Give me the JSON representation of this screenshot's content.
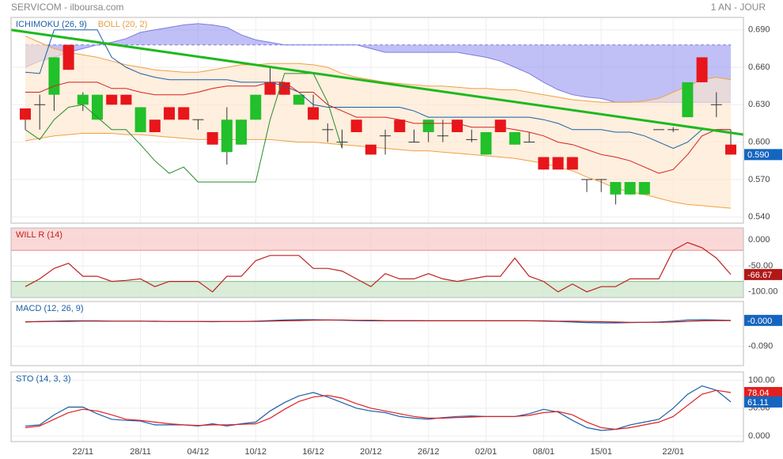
{
  "header": {
    "title": "SERVICOM - ilboursa.com",
    "period": "1 AN - JOUR"
  },
  "chart_data": [
    {
      "type": "candlestick",
      "indicators": [
        {
          "name": "ICHIMOKU (26, 9)",
          "color": "#1a5fa8"
        },
        {
          "name": "BOLL (20, 2)",
          "color": "#e8a040"
        }
      ],
      "categories": [
        null,
        null,
        null,
        null,
        "22/11",
        null,
        null,
        null,
        "28/11",
        null,
        null,
        null,
        "04/12",
        null,
        null,
        null,
        "10/12",
        null,
        null,
        null,
        "16/12",
        null,
        null,
        null,
        "20/12",
        null,
        null,
        null,
        "26/12",
        null,
        null,
        null,
        "02/01",
        null,
        null,
        null,
        "08/01",
        null,
        null,
        null,
        "15/01",
        null,
        null,
        null,
        null,
        "22/01",
        null,
        null,
        null,
        null
      ],
      "open": [
        0.627,
        0.63,
        0.638,
        0.678,
        0.63,
        0.618,
        0.638,
        0.638,
        0.608,
        0.618,
        0.628,
        0.628,
        0.618,
        0.608,
        0.592,
        0.598,
        0.618,
        0.648,
        0.648,
        0.63,
        0.628,
        0.61,
        0.6,
        0.618,
        0.598,
        0.605,
        0.618,
        0.6,
        0.608,
        0.605,
        0.618,
        0.602,
        0.59,
        0.618,
        0.598,
        0.6,
        0.588,
        0.588,
        0.588,
        0.57,
        0.57,
        0.558,
        0.558,
        0.558,
        0.61,
        0.61,
        0.62,
        0.668,
        0.63,
        0.598
      ],
      "high": [
        0.627,
        0.638,
        0.668,
        0.678,
        0.64,
        0.638,
        0.638,
        0.638,
        0.628,
        0.618,
        0.628,
        0.628,
        0.618,
        0.608,
        0.628,
        0.618,
        0.638,
        0.66,
        0.648,
        0.638,
        0.638,
        0.615,
        0.61,
        0.618,
        0.598,
        0.61,
        0.618,
        0.61,
        0.618,
        0.618,
        0.618,
        0.61,
        0.608,
        0.618,
        0.608,
        0.608,
        0.588,
        0.588,
        0.588,
        0.57,
        0.57,
        0.568,
        0.568,
        0.568,
        0.61,
        0.612,
        0.648,
        0.668,
        0.64,
        0.61
      ],
      "low": [
        0.61,
        0.61,
        0.625,
        0.658,
        0.625,
        0.618,
        0.63,
        0.63,
        0.608,
        0.608,
        0.618,
        0.618,
        0.61,
        0.598,
        0.582,
        0.598,
        0.618,
        0.638,
        0.638,
        0.63,
        0.618,
        0.6,
        0.595,
        0.608,
        0.59,
        0.59,
        0.608,
        0.6,
        0.6,
        0.6,
        0.608,
        0.6,
        0.59,
        0.608,
        0.598,
        0.6,
        0.578,
        0.578,
        0.578,
        0.56,
        0.56,
        0.55,
        0.558,
        0.558,
        0.61,
        0.608,
        0.62,
        0.648,
        0.62,
        0.59
      ],
      "close": [
        0.618,
        0.63,
        0.668,
        0.658,
        0.638,
        0.638,
        0.63,
        0.63,
        0.628,
        0.608,
        0.618,
        0.618,
        0.618,
        0.598,
        0.618,
        0.618,
        0.638,
        0.638,
        0.638,
        0.638,
        0.618,
        0.61,
        0.6,
        0.608,
        0.59,
        0.605,
        0.608,
        0.6,
        0.618,
        0.605,
        0.608,
        0.602,
        0.608,
        0.608,
        0.608,
        0.6,
        0.578,
        0.578,
        0.578,
        0.57,
        0.57,
        0.568,
        0.568,
        0.568,
        0.61,
        0.61,
        0.648,
        0.648,
        0.63,
        0.59
      ],
      "up_color": "#22c02a",
      "down_color": "#e8151b",
      "bands": [
        {
          "name": "cloud",
          "upper": "span_b",
          "lower": "span_a",
          "fill": "#8c8cf0",
          "line": "#7b7be0"
        },
        {
          "name": "boll",
          "upper": "boll_upper",
          "lower": "boll_lower",
          "fill": "#fde6cc",
          "line": "#f0a040"
        }
      ],
      "lines": {
        "span_a": [
          0.678,
          0.678,
          0.678,
          0.678,
          0.678,
          0.678,
          0.678,
          0.678,
          0.678,
          0.678,
          0.678,
          0.678,
          0.678,
          0.678,
          0.678,
          0.678,
          0.678,
          0.678,
          0.678,
          0.678,
          0.678,
          0.678,
          0.678,
          0.678,
          0.678,
          0.678,
          0.678,
          0.678,
          0.678,
          0.678,
          0.678,
          0.678,
          0.678,
          0.678,
          0.678,
          0.678,
          0.678,
          0.678,
          0.678,
          0.678,
          0.678,
          0.678,
          0.678,
          0.678,
          0.678,
          0.678,
          0.678,
          0.678,
          0.678,
          0.678
        ],
        "span_b": [
          0.66,
          0.665,
          0.668,
          0.672,
          0.675,
          0.678,
          0.68,
          0.683,
          0.688,
          0.69,
          0.692,
          0.694,
          0.695,
          0.694,
          0.692,
          0.686,
          0.682,
          0.68,
          0.678,
          0.678,
          0.678,
          0.678,
          0.678,
          0.678,
          0.675,
          0.672,
          0.672,
          0.672,
          0.672,
          0.672,
          0.672,
          0.67,
          0.668,
          0.665,
          0.66,
          0.655,
          0.648,
          0.642,
          0.638,
          0.636,
          0.635,
          0.632,
          0.632,
          0.632,
          0.632,
          0.632,
          0.632,
          0.632,
          0.632,
          0.632
        ],
        "boll_upper": [
          0.685,
          0.68,
          0.675,
          0.672,
          0.67,
          0.668,
          0.665,
          0.662,
          0.66,
          0.658,
          0.657,
          0.656,
          0.656,
          0.658,
          0.66,
          0.662,
          0.662,
          0.663,
          0.663,
          0.663,
          0.662,
          0.66,
          0.655,
          0.652,
          0.65,
          0.648,
          0.647,
          0.646,
          0.645,
          0.645,
          0.644,
          0.643,
          0.643,
          0.642,
          0.642,
          0.64,
          0.638,
          0.636,
          0.634,
          0.633,
          0.632,
          0.632,
          0.632,
          0.633,
          0.635,
          0.64,
          0.645,
          0.65,
          0.652,
          0.65
        ],
        "boll_lower": [
          0.601,
          0.603,
          0.605,
          0.606,
          0.607,
          0.607,
          0.607,
          0.606,
          0.606,
          0.605,
          0.604,
          0.603,
          0.602,
          0.602,
          0.602,
          0.602,
          0.602,
          0.602,
          0.601,
          0.6,
          0.6,
          0.599,
          0.598,
          0.597,
          0.596,
          0.595,
          0.594,
          0.593,
          0.593,
          0.592,
          0.591,
          0.59,
          0.589,
          0.588,
          0.587,
          0.585,
          0.583,
          0.58,
          0.577,
          0.572,
          0.568,
          0.563,
          0.56,
          0.558,
          0.555,
          0.552,
          0.55,
          0.549,
          0.548,
          0.547
        ]
      },
      "series": [
        {
          "color": "#1a5fa8",
          "values": [
            0.656,
            0.655,
            0.69,
            0.69,
            0.69,
            0.69,
            0.668,
            0.66,
            0.655,
            0.652,
            0.65,
            0.65,
            0.65,
            0.65,
            0.65,
            0.648,
            0.648,
            0.648,
            0.645,
            0.64,
            0.63,
            0.628,
            0.628,
            0.628,
            0.628,
            0.628,
            0.628,
            0.625,
            0.62,
            0.62,
            0.62,
            0.62,
            0.62,
            0.62,
            0.62,
            0.62,
            0.618,
            0.615,
            0.61,
            0.61,
            0.61,
            0.608,
            0.608,
            0.605,
            0.6,
            0.595,
            0.6,
            0.61,
            0.61,
            0.61
          ]
        },
        {
          "color": "#d42020",
          "values": [
            0.64,
            0.64,
            0.645,
            0.648,
            0.648,
            0.648,
            0.643,
            0.643,
            0.64,
            0.638,
            0.638,
            0.638,
            0.64,
            0.643,
            0.645,
            0.645,
            0.645,
            0.648,
            0.648,
            0.64,
            0.64,
            0.63,
            0.625,
            0.62,
            0.62,
            0.62,
            0.618,
            0.615,
            0.615,
            0.615,
            0.615,
            0.612,
            0.612,
            0.612,
            0.61,
            0.608,
            0.605,
            0.6,
            0.598,
            0.594,
            0.59,
            0.588,
            0.585,
            0.58,
            0.575,
            0.578,
            0.59,
            0.605,
            0.61,
            0.61
          ]
        },
        {
          "color": "#2a8a2a",
          "values": [
            0.61,
            0.602,
            0.618,
            0.628,
            0.63,
            0.62,
            0.61,
            0.61,
            0.598,
            0.585,
            0.575,
            0.58,
            0.568,
            0.568,
            0.568,
            0.568,
            0.568,
            0.618,
            0.655,
            0.655,
            0.655,
            0.632,
            0.595,
            null,
            null,
            null,
            null,
            null,
            null,
            null,
            null,
            null,
            null,
            null,
            null,
            null,
            null,
            null,
            null,
            null,
            null,
            null,
            null,
            null,
            null,
            null,
            null,
            null,
            null,
            null
          ]
        }
      ],
      "trendline": {
        "x": [
          -1,
          49.9
        ],
        "values": [
          0.69,
          0.606
        ],
        "color": "#1fb81f"
      },
      "ylim": [
        0.535,
        0.7
      ],
      "yticks": [
        {
          "value": 0.54,
          "label": "0.540"
        },
        {
          "value": 0.57,
          "label": "0.570"
        },
        {
          "value": 0.6,
          "label": "0.600"
        },
        {
          "value": 0.63,
          "label": "0.630"
        },
        {
          "value": 0.66,
          "label": "0.660"
        },
        {
          "value": 0.69,
          "label": "0.690"
        }
      ],
      "last": {
        "value": 0.59,
        "label": "0.590",
        "color": "#1565c0"
      }
    },
    {
      "type": "line",
      "title": "WILL R (14)",
      "title_color": "#c02020",
      "overbought": -20,
      "oversold": -80,
      "series": [
        {
          "color": "#c02020",
          "values": [
            -90,
            -75,
            -55,
            -45,
            -70,
            -70,
            -80,
            -78,
            -75,
            -90,
            -80,
            -80,
            -80,
            -100,
            -70,
            -70,
            -40,
            -30,
            -30,
            -30,
            -55,
            -55,
            -60,
            -75,
            -90,
            -65,
            -75,
            -75,
            -65,
            -75,
            -80,
            -75,
            -70,
            -70,
            -35,
            -70,
            -80,
            -100,
            -85,
            -100,
            -90,
            -90,
            -75,
            -75,
            -75,
            -20,
            -5,
            -15,
            -35,
            -66.67
          ]
        }
      ],
      "ylim": [
        -111,
        23
      ],
      "yticks": [
        {
          "value": 0,
          "label": "0.000"
        },
        {
          "value": -50,
          "label": "-50.00"
        },
        {
          "value": -100,
          "label": "-100.00"
        }
      ],
      "last": {
        "value": -66.67,
        "label": "-66.67",
        "color": "#b01818"
      }
    },
    {
      "type": "line",
      "title": "MACD (12, 26, 9)",
      "title_color": "#1a5fa8",
      "series": [
        {
          "color": "#1a5fa8",
          "values": [
            -0.006,
            -0.004,
            -0.003,
            -0.002,
            -0.002,
            -0.002,
            -0.003,
            -0.003,
            -0.003,
            -0.004,
            -0.004,
            -0.004,
            -0.004,
            -0.005,
            -0.004,
            -0.004,
            -0.003,
            -0.001,
            0.001,
            0.002,
            0.002,
            0.001,
            0,
            -0.001,
            -0.002,
            -0.002,
            -0.002,
            -0.002,
            -0.002,
            -0.002,
            -0.002,
            -0.002,
            -0.002,
            -0.002,
            -0.002,
            -0.002,
            -0.003,
            -0.004,
            -0.006,
            -0.008,
            -0.009,
            -0.009,
            -0.008,
            -0.007,
            -0.006,
            -0.003,
            0.001,
            0.002,
            0.001,
            -0.0004
          ]
        },
        {
          "color": "#c02020",
          "values": [
            -0.005,
            -0.005,
            -0.004,
            -0.004,
            -0.003,
            -0.003,
            -0.003,
            -0.003,
            -0.003,
            -0.003,
            -0.004,
            -0.004,
            -0.004,
            -0.004,
            -0.004,
            -0.004,
            -0.004,
            -0.003,
            -0.002,
            -0.001,
            0,
            0.001,
            0.001,
            0,
            0,
            -0.001,
            -0.001,
            -0.001,
            -0.002,
            -0.002,
            -0.002,
            -0.002,
            -0.002,
            -0.002,
            -0.002,
            -0.002,
            -0.002,
            -0.003,
            -0.003,
            -0.004,
            -0.005,
            -0.006,
            -0.007,
            -0.007,
            -0.007,
            -0.006,
            -0.004,
            -0.002,
            -0.001,
            -0.001
          ]
        }
      ],
      "ylim": [
        -0.157,
        0.065
      ],
      "yticks": [
        {
          "value": -0.09,
          "label": "-0.090"
        }
      ],
      "last": {
        "value": -0.0004,
        "label": "-0.000",
        "color": "#1565c0"
      }
    },
    {
      "type": "line",
      "title": "STO (14, 3, 3)",
      "title_color": "#1a5fa8",
      "series": [
        {
          "color": "#1a5fa8",
          "values": [
            18,
            20,
            38,
            52,
            52,
            40,
            30,
            28,
            27,
            20,
            20,
            20,
            18,
            22,
            18,
            22,
            25,
            45,
            60,
            72,
            78,
            70,
            60,
            50,
            45,
            42,
            35,
            32,
            30,
            33,
            35,
            36,
            35,
            35,
            35,
            40,
            48,
            43,
            28,
            15,
            10,
            12,
            20,
            25,
            30,
            50,
            75,
            90,
            82,
            61.11
          ]
        },
        {
          "color": "#e02020",
          "values": [
            15,
            18,
            30,
            42,
            48,
            45,
            38,
            30,
            28,
            25,
            22,
            20,
            19,
            20,
            20,
            21,
            22,
            32,
            48,
            62,
            70,
            73,
            68,
            58,
            50,
            45,
            40,
            35,
            32,
            32,
            33,
            34,
            35,
            35,
            35,
            37,
            42,
            44,
            38,
            25,
            15,
            12,
            15,
            20,
            25,
            35,
            55,
            75,
            82,
            78.04
          ]
        }
      ],
      "ylim": [
        -10,
        115
      ],
      "yticks": [
        {
          "value": 0,
          "label": "0.000"
        },
        {
          "value": 50,
          "label": "50.00"
        },
        {
          "value": 100,
          "label": "100.00"
        }
      ],
      "lasts": [
        {
          "value": 78.04,
          "label": "78.04",
          "color": "#e02020"
        },
        {
          "value": 61.11,
          "label": "61.11",
          "color": "#1565c0"
        }
      ]
    }
  ]
}
